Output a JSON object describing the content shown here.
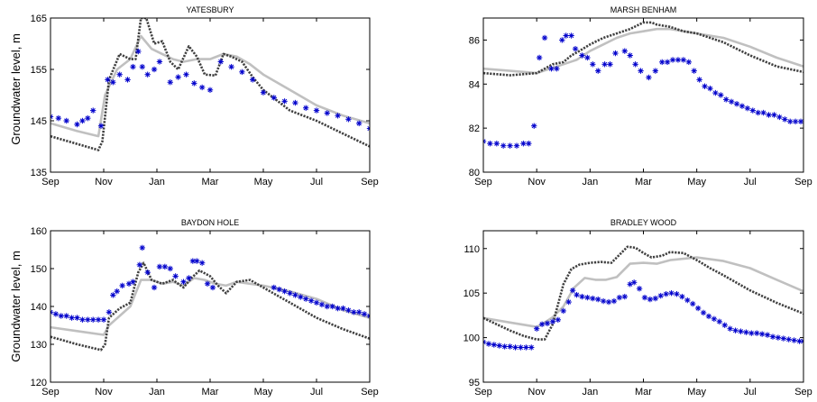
{
  "y_label": "Groundwater level, m",
  "colors": {
    "observed": "#0000cc",
    "model_grey": "#c0c0c0",
    "model_dark": "#404040"
  },
  "chart_data": [
    {
      "type": "line",
      "title": "YATESBURY",
      "ylabel": "Groundwater level, m",
      "xlim": [
        0,
        12
      ],
      "ylim": [
        135,
        165
      ],
      "yticks": [
        135,
        145,
        155,
        165
      ],
      "xticks": [
        0,
        2,
        4,
        6,
        8,
        10,
        12
      ],
      "xtick_labels": [
        "Sep",
        "Nov",
        "Jan",
        "Mar",
        "May",
        "Jul",
        "Sep"
      ],
      "series": [
        {
          "style": "line",
          "color": "#c0c0c0",
          "x": [
            0,
            1,
            1.8,
            2.05,
            2.5,
            3,
            3.4,
            3.8,
            4.2,
            4.6,
            5,
            5.5,
            6,
            6.5,
            7,
            7.5,
            8,
            9,
            10,
            11,
            12
          ],
          "y": [
            144.5,
            143,
            142,
            150,
            155,
            157,
            161.5,
            159,
            158,
            157,
            156.5,
            157,
            157,
            158,
            157.5,
            156,
            154,
            151,
            148,
            146,
            144.5
          ]
        },
        {
          "style": "line",
          "color": "#404040",
          "x": [
            0,
            1,
            1.8,
            1.95,
            2.2,
            2.6,
            3,
            3.2,
            3.4,
            3.6,
            3.9,
            4.2,
            4.5,
            4.8,
            5.2,
            5.5,
            5.8,
            6.2,
            6.5,
            6.8,
            7.2,
            7.6,
            8,
            8.5,
            9,
            10,
            11,
            12
          ],
          "y": [
            142,
            140.5,
            139.3,
            141,
            153,
            158,
            157,
            157,
            165,
            165,
            160,
            160.5,
            156.5,
            155,
            159.5,
            157.5,
            154,
            153.8,
            158,
            157.5,
            156.5,
            153.5,
            151,
            149,
            147,
            145,
            142.5,
            140
          ]
        },
        {
          "style": "markers",
          "color": "#0000cc",
          "x": [
            0,
            0.3,
            0.6,
            1,
            1.2,
            1.4,
            1.6,
            1.9,
            2.15,
            2.35,
            2.6,
            2.9,
            3.1,
            3.3,
            3.45,
            3.65,
            3.9,
            4.1,
            4.5,
            4.8,
            5.1,
            5.4,
            5.7,
            6,
            6.4,
            6.8,
            7.2,
            7.6,
            8,
            8.4,
            8.8,
            9.2,
            9.6,
            10,
            10.4,
            10.8,
            11.2,
            11.6,
            12
          ],
          "y": [
            145.8,
            145.5,
            145,
            144.3,
            145,
            145.5,
            147,
            144,
            153,
            152.5,
            154,
            153,
            155.5,
            158.5,
            155.5,
            154,
            155,
            156.5,
            152.5,
            153.5,
            154,
            152.3,
            151.5,
            151,
            156.5,
            155.5,
            154.5,
            153,
            150.5,
            149.5,
            148.8,
            148.5,
            147.5,
            147,
            146.5,
            146,
            145.3,
            144.5,
            143.5
          ]
        }
      ]
    },
    {
      "type": "line",
      "title": "MARSH BENHAM",
      "ylabel": "",
      "xlim": [
        0,
        12
      ],
      "ylim": [
        80,
        87
      ],
      "yticks": [
        80,
        82,
        84,
        86
      ],
      "xticks": [
        0,
        2,
        4,
        6,
        8,
        10,
        12
      ],
      "xtick_labels": [
        "Sep",
        "Nov",
        "Jan",
        "Mar",
        "May",
        "Jul",
        "Sep"
      ],
      "series": [
        {
          "style": "line",
          "color": "#c0c0c0",
          "x": [
            0,
            1,
            2,
            2.5,
            3,
            3.5,
            4,
            4.5,
            5,
            5.5,
            6,
            6.5,
            7,
            8,
            9,
            10,
            11,
            12
          ],
          "y": [
            84.7,
            84.6,
            84.5,
            84.7,
            84.9,
            85.1,
            85.5,
            85.8,
            86.1,
            86.3,
            86.4,
            86.5,
            86.5,
            86.3,
            86.1,
            85.7,
            85.2,
            84.8
          ]
        },
        {
          "style": "line",
          "color": "#404040",
          "x": [
            0,
            1,
            2,
            2.3,
            2.6,
            3,
            3.3,
            3.6,
            4,
            4.5,
            5,
            5.5,
            6,
            6.3,
            6.5,
            7,
            7.5,
            8,
            9,
            10,
            11,
            12
          ],
          "y": [
            84.5,
            84.4,
            84.5,
            84.7,
            84.9,
            85,
            85.3,
            85.5,
            85.8,
            86.1,
            86.3,
            86.5,
            86.8,
            86.8,
            86.7,
            86.6,
            86.4,
            86.3,
            85.9,
            85.3,
            84.8,
            84.55
          ]
        },
        {
          "style": "markers",
          "color": "#0000cc",
          "x": [
            0,
            0.25,
            0.5,
            0.75,
            1,
            1.25,
            1.5,
            1.7,
            1.9,
            2.1,
            2.3,
            2.55,
            2.75,
            2.95,
            3.1,
            3.3,
            3.45,
            3.7,
            3.9,
            4.1,
            4.3,
            4.55,
            4.75,
            4.95,
            5.3,
            5.5,
            5.7,
            5.9,
            6.2,
            6.45,
            6.7,
            6.9,
            7.1,
            7.3,
            7.5,
            7.7,
            7.9,
            8.1,
            8.3,
            8.5,
            8.7,
            8.9,
            9.1,
            9.3,
            9.5,
            9.7,
            9.9,
            10.1,
            10.3,
            10.5,
            10.7,
            10.9,
            11.1,
            11.3,
            11.5,
            11.7,
            11.9
          ],
          "y": [
            81.4,
            81.3,
            81.3,
            81.2,
            81.2,
            81.2,
            81.3,
            81.3,
            82.1,
            85.2,
            86.1,
            84.7,
            84.7,
            86,
            86.2,
            86.2,
            85.6,
            85.3,
            85.2,
            84.9,
            84.6,
            84.9,
            84.9,
            85.4,
            85.5,
            85.3,
            84.9,
            84.6,
            84.3,
            84.6,
            85,
            85,
            85.1,
            85.1,
            85.1,
            85,
            84.6,
            84.2,
            83.9,
            83.8,
            83.6,
            83.5,
            83.3,
            83.2,
            83.1,
            83,
            82.9,
            82.8,
            82.7,
            82.7,
            82.6,
            82.6,
            82.5,
            82.4,
            82.3,
            82.3,
            82.3
          ]
        }
      ]
    },
    {
      "type": "line",
      "title": "BAYDON HOLE",
      "ylabel": "Groundwater level, m",
      "xlim": [
        0,
        12
      ],
      "ylim": [
        120,
        160
      ],
      "yticks": [
        120,
        130,
        140,
        150,
        160
      ],
      "xticks": [
        0,
        2,
        4,
        6,
        8,
        10,
        12
      ],
      "xtick_labels": [
        "Sep",
        "Nov",
        "Jan",
        "Mar",
        "May",
        "Jul",
        "Sep"
      ],
      "series": [
        {
          "style": "line",
          "color": "#c0c0c0",
          "x": [
            0,
            1,
            2,
            2.2,
            2.6,
            3,
            3.4,
            3.8,
            4.2,
            4.6,
            5,
            5.4,
            5.8,
            6.2,
            6.6,
            7,
            7.5,
            8,
            9,
            10,
            11,
            12
          ],
          "y": [
            134.5,
            133.5,
            132.5,
            135,
            137.5,
            140,
            147,
            147,
            146,
            146.5,
            145.5,
            147.5,
            147,
            146,
            145.5,
            146.5,
            146,
            145.5,
            144,
            142,
            139,
            137
          ]
        },
        {
          "style": "line",
          "color": "#404040",
          "x": [
            0,
            1,
            1.9,
            2.05,
            2.2,
            2.6,
            3,
            3.3,
            3.5,
            3.8,
            4.2,
            4.6,
            5,
            5.3,
            5.6,
            6,
            6.3,
            6.6,
            7,
            7.5,
            8,
            9,
            10,
            11,
            12
          ],
          "y": [
            132,
            130,
            128.5,
            130,
            137,
            139.5,
            141,
            149,
            151.5,
            147,
            146,
            147,
            145,
            147.5,
            149.5,
            148,
            145.5,
            143.5,
            146.5,
            147,
            145,
            141,
            137,
            134,
            131.5
          ]
        },
        {
          "style": "markers",
          "color": "#0000cc",
          "x": [
            0,
            0.2,
            0.4,
            0.6,
            0.8,
            1,
            1.2,
            1.4,
            1.6,
            1.8,
            2,
            2.2,
            2.35,
            2.5,
            2.7,
            2.95,
            3.1,
            3.35,
            3.45,
            3.65,
            3.9,
            4.1,
            4.3,
            4.5,
            4.7,
            5,
            5.2,
            5.35,
            5.5,
            5.7,
            5.9,
            6.1,
            8.4,
            8.6,
            8.8,
            9,
            9.2,
            9.4,
            9.6,
            9.8,
            10,
            10.2,
            10.4,
            10.6,
            10.8,
            11,
            11.2,
            11.4,
            11.6,
            11.8,
            12
          ],
          "y": [
            138.5,
            138,
            137.5,
            137.5,
            137,
            137,
            136.5,
            136.5,
            136.5,
            136.5,
            136.5,
            138.5,
            143,
            144,
            145.5,
            146,
            146.5,
            151,
            155.5,
            149,
            145,
            150.5,
            150.5,
            150,
            148,
            146.5,
            147.5,
            152,
            152,
            151.5,
            146,
            145,
            145,
            144.5,
            144,
            143.5,
            143,
            142.5,
            142,
            141.5,
            141,
            140.5,
            140,
            140,
            139.5,
            139.5,
            139,
            138.5,
            138.5,
            138,
            137.5
          ]
        }
      ]
    },
    {
      "type": "line",
      "title": "BRADLEY WOOD",
      "ylabel": "",
      "xlim": [
        0,
        12
      ],
      "ylim": [
        95,
        112
      ],
      "yticks": [
        95,
        100,
        105,
        110
      ],
      "xticks": [
        0,
        2,
        4,
        6,
        8,
        10,
        12
      ],
      "xtick_labels": [
        "Sep",
        "Nov",
        "Jan",
        "Mar",
        "May",
        "Jul",
        "Sep"
      ],
      "series": [
        {
          "style": "line",
          "color": "#c0c0c0",
          "x": [
            0,
            1,
            2,
            2.3,
            2.6,
            3,
            3.4,
            3.8,
            4.2,
            4.6,
            5,
            5.5,
            6,
            6.5,
            7,
            8,
            9,
            10,
            11,
            12
          ],
          "y": [
            102.2,
            101.7,
            101.2,
            101.7,
            102.3,
            103.5,
            105.6,
            106.7,
            106.5,
            106.5,
            106.8,
            108.3,
            108.4,
            108.3,
            108.7,
            109,
            108.6,
            107.8,
            106.5,
            105.2
          ]
        },
        {
          "style": "line",
          "color": "#404040",
          "x": [
            0,
            0.5,
            1,
            1.5,
            2,
            2.3,
            2.6,
            3,
            3.3,
            3.6,
            4,
            4.4,
            4.8,
            5.1,
            5.4,
            5.7,
            6,
            6.3,
            6.7,
            7,
            7.5,
            8,
            8.5,
            9,
            10,
            11,
            12
          ],
          "y": [
            102.2,
            101.5,
            100.8,
            100.2,
            99.8,
            99.8,
            101.5,
            106,
            107.7,
            108.2,
            108.4,
            108.5,
            108.4,
            109.3,
            110.2,
            110.1,
            109.5,
            109,
            109.2,
            109.6,
            109.5,
            108.7,
            107.8,
            107,
            105.3,
            103.9,
            102.7
          ]
        },
        {
          "style": "markers",
          "color": "#0000cc",
          "x": [
            0,
            0.2,
            0.4,
            0.6,
            0.8,
            1,
            1.2,
            1.4,
            1.6,
            1.8,
            2,
            2.2,
            2.4,
            2.6,
            2.8,
            3,
            3.2,
            3.35,
            3.5,
            3.7,
            3.9,
            4.1,
            4.3,
            4.5,
            4.7,
            4.9,
            5.1,
            5.3,
            5.5,
            5.65,
            5.85,
            6.05,
            6.25,
            6.45,
            6.65,
            6.85,
            7.05,
            7.25,
            7.45,
            7.65,
            7.85,
            8.05,
            8.25,
            8.45,
            8.65,
            8.85,
            9.05,
            9.25,
            9.45,
            9.65,
            9.85,
            10.05,
            10.25,
            10.45,
            10.65,
            10.85,
            11.05,
            11.25,
            11.45,
            11.65,
            11.85,
            12
          ],
          "y": [
            99.5,
            99.3,
            99.2,
            99.1,
            99,
            99,
            98.9,
            98.9,
            98.9,
            98.9,
            101,
            101.5,
            101.6,
            101.8,
            102,
            103,
            104,
            105.3,
            104.8,
            104.6,
            104.5,
            104.4,
            104.3,
            104.1,
            104,
            104.1,
            104.5,
            104.6,
            106,
            106.2,
            105.5,
            104.5,
            104.3,
            104.4,
            104.7,
            104.9,
            105,
            104.9,
            104.6,
            104.2,
            103.8,
            103.3,
            102.8,
            102.4,
            102.1,
            101.8,
            101.4,
            101,
            100.8,
            100.7,
            100.6,
            100.5,
            100.5,
            100.4,
            100.3,
            100.1,
            100,
            99.9,
            99.8,
            99.7,
            99.6,
            99.6
          ]
        }
      ]
    }
  ]
}
